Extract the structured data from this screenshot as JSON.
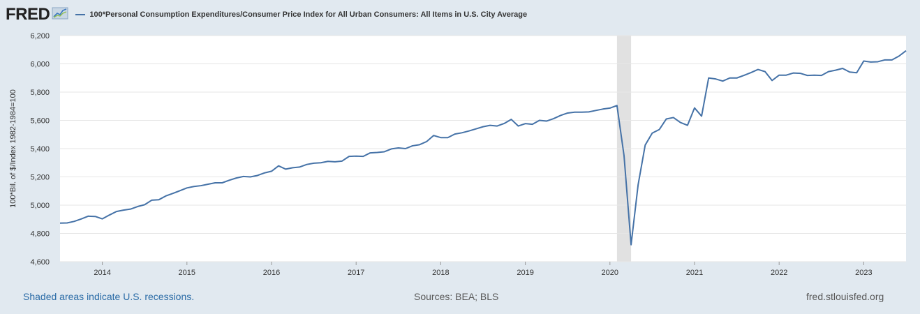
{
  "header": {
    "logo_text": "FRED",
    "legend_label": "100*Personal Consumption Expenditures/Consumer Price Index for All Urban Consumers: All Items in U.S. City Average"
  },
  "footer": {
    "recession_note": "Shaded areas indicate U.S. recessions.",
    "sources": "Sources: BEA; BLS",
    "site": "fred.stlouisfed.org"
  },
  "colors": {
    "series": "#4572a7",
    "recession": "#e1e1e1",
    "background": "#e1e9f0",
    "plot": "#ffffff"
  },
  "chart_data": {
    "type": "line",
    "title": "",
    "xlabel": "",
    "ylabel": "100*Bil. of $/Index 1982-1984=100",
    "x_range": [
      "2013-07",
      "2023-07"
    ],
    "ylim": [
      4600,
      6200
    ],
    "yticks": [
      4600,
      4800,
      5000,
      5200,
      5400,
      5600,
      5800,
      6000,
      6200
    ],
    "ytick_labels": [
      "4,600",
      "4,800",
      "5,000",
      "5,200",
      "5,400",
      "5,600",
      "5,800",
      "6,000",
      "6,200"
    ],
    "xticks": [
      "2014-01",
      "2015-01",
      "2016-01",
      "2017-01",
      "2018-01",
      "2019-01",
      "2020-01",
      "2021-01",
      "2022-01",
      "2023-01"
    ],
    "xtick_labels": [
      "2014",
      "2015",
      "2016",
      "2017",
      "2018",
      "2019",
      "2020",
      "2021",
      "2022",
      "2023"
    ],
    "grid": "horizontal",
    "recessions": [
      [
        "2020-02",
        "2020-04"
      ]
    ],
    "series": [
      {
        "name": "100*Personal Consumption Expenditures/Consumer Price Index for All Urban Consumers: All Items in U.S. City Average",
        "x_start": "2013-07",
        "frequency": "monthly",
        "values": [
          4873,
          4874,
          4885,
          4902,
          4922,
          4920,
          4903,
          4930,
          4955,
          4965,
          4972,
          4990,
          5003,
          5035,
          5038,
          5065,
          5083,
          5102,
          5122,
          5132,
          5138,
          5148,
          5158,
          5158,
          5176,
          5192,
          5203,
          5200,
          5210,
          5228,
          5240,
          5278,
          5255,
          5265,
          5270,
          5288,
          5297,
          5300,
          5310,
          5307,
          5312,
          5345,
          5347,
          5345,
          5370,
          5373,
          5378,
          5398,
          5405,
          5400,
          5420,
          5428,
          5450,
          5493,
          5478,
          5478,
          5503,
          5512,
          5525,
          5540,
          5555,
          5565,
          5560,
          5578,
          5607,
          5560,
          5577,
          5572,
          5600,
          5595,
          5612,
          5635,
          5652,
          5658,
          5658,
          5660,
          5670,
          5680,
          5687,
          5705,
          5350,
          4720,
          5145,
          5425,
          5510,
          5535,
          5610,
          5620,
          5585,
          5565,
          5688,
          5630,
          5900,
          5893,
          5878,
          5900,
          5900,
          5918,
          5938,
          5960,
          5945,
          5882,
          5920,
          5920,
          5935,
          5933,
          5918,
          5920,
          5918,
          5945,
          5955,
          5968,
          5942,
          5937,
          6020,
          6013,
          6015,
          6028,
          6028,
          6055,
          6093
        ]
      }
    ]
  }
}
